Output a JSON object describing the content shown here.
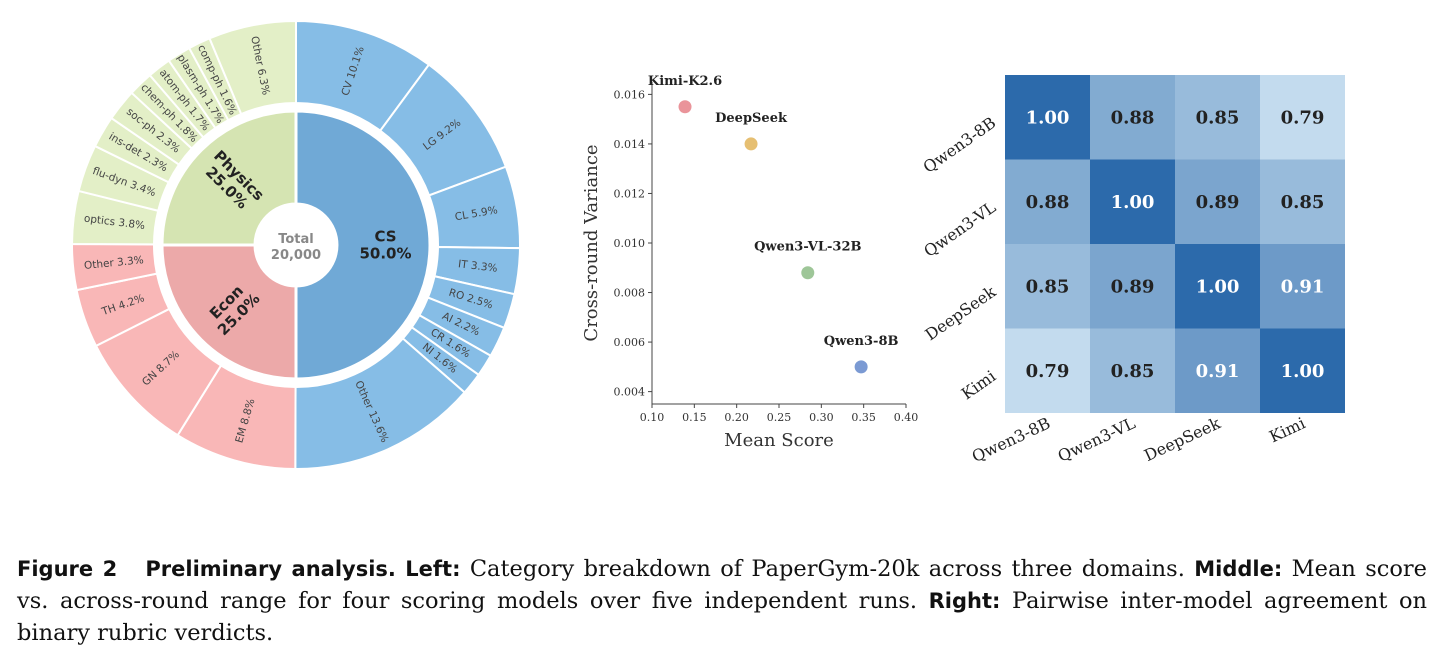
{
  "chart_data": [
    {
      "type": "sunburst",
      "center_label": "Total",
      "center_value": "20,000",
      "inner": [
        {
          "name": "CS",
          "label": "CS",
          "percent_label": "50.0%",
          "value": 50.0,
          "color": "#70a9d6"
        },
        {
          "name": "Econ",
          "label": "Econ",
          "percent_label": "25.0%",
          "value": 25.0,
          "color": "#eca9a9"
        },
        {
          "name": "Physics",
          "label": "Physics",
          "percent_label": "25.0%",
          "value": 25.0,
          "color": "#d5e4b2"
        }
      ],
      "outer": [
        {
          "parent": "CS",
          "label": "CV 10.1%",
          "value": 10.1
        },
        {
          "parent": "CS",
          "label": "LG 9.2%",
          "value": 9.2
        },
        {
          "parent": "CS",
          "label": "CL 5.9%",
          "value": 5.9
        },
        {
          "parent": "CS",
          "label": "IT 3.3%",
          "value": 3.3
        },
        {
          "parent": "CS",
          "label": "RO 2.5%",
          "value": 2.5
        },
        {
          "parent": "CS",
          "label": "AI 2.2%",
          "value": 2.2
        },
        {
          "parent": "CS",
          "label": "CR 1.6%",
          "value": 1.6
        },
        {
          "parent": "CS",
          "label": "NI 1.6%",
          "value": 1.6
        },
        {
          "parent": "CS",
          "label": "Other 13.6%",
          "value": 13.6
        },
        {
          "parent": "Econ",
          "label": "EM 8.8%",
          "value": 8.8
        },
        {
          "parent": "Econ",
          "label": "GN 8.7%",
          "value": 8.7
        },
        {
          "parent": "Econ",
          "label": "TH 4.2%",
          "value": 4.2
        },
        {
          "parent": "Econ",
          "label": "Other 3.3%",
          "value": 3.3
        },
        {
          "parent": "Physics",
          "label": "optics 3.8%",
          "value": 3.8
        },
        {
          "parent": "Physics",
          "label": "flu-dyn 3.4%",
          "value": 3.4
        },
        {
          "parent": "Physics",
          "label": "ins-det 2.3%",
          "value": 2.3
        },
        {
          "parent": "Physics",
          "label": "soc-ph 2.3%",
          "value": 2.3
        },
        {
          "parent": "Physics",
          "label": "chem-ph 1.8%",
          "value": 1.8
        },
        {
          "parent": "Physics",
          "label": "atom-ph 1.7%",
          "value": 1.7
        },
        {
          "parent": "Physics",
          "label": "plasm-ph 1.7%",
          "value": 1.7
        },
        {
          "parent": "Physics",
          "label": "comp-ph 1.6%",
          "value": 1.6
        },
        {
          "parent": "Physics",
          "label": "Other 6.3%",
          "value": 6.3
        }
      ],
      "outer_colors": {
        "CS": "#86bde6",
        "Econ": "#f9b7b7",
        "Physics": "#e3efc7"
      }
    },
    {
      "type": "scatter",
      "xlabel": "Mean Score",
      "ylabel": "Cross-round Variance",
      "xlim": [
        0.1,
        0.4
      ],
      "ylim": [
        0.0035,
        0.0165
      ],
      "xticks": [
        0.1,
        0.15,
        0.2,
        0.25,
        0.3,
        0.35,
        0.4
      ],
      "yticks": [
        0.004,
        0.006,
        0.008,
        0.01,
        0.012,
        0.014,
        0.016
      ],
      "points": [
        {
          "name": "Kimi-K2.6",
          "x": 0.139,
          "y": 0.0155,
          "color": "#e8888f"
        },
        {
          "name": "DeepSeek",
          "x": 0.217,
          "y": 0.014,
          "color": "#e3b863"
        },
        {
          "name": "Qwen3-VL-32B",
          "x": 0.284,
          "y": 0.0088,
          "color": "#93c08d"
        },
        {
          "name": "Qwen3-8B",
          "x": 0.347,
          "y": 0.005,
          "color": "#6d8fce"
        }
      ]
    },
    {
      "type": "heatmap",
      "rows": [
        "Qwen3-8B",
        "Qwen3-VL",
        "DeepSeek",
        "Kimi"
      ],
      "cols": [
        "Qwen3-8B",
        "Qwen3-VL",
        "DeepSeek",
        "Kimi"
      ],
      "values": [
        [
          1.0,
          0.88,
          0.85,
          0.79
        ],
        [
          0.88,
          1.0,
          0.89,
          0.85
        ],
        [
          0.85,
          0.89,
          1.0,
          0.91
        ],
        [
          0.79,
          0.85,
          0.91,
          1.0
        ]
      ],
      "value_labels": [
        [
          "1.00",
          "0.88",
          "0.85",
          "0.79"
        ],
        [
          "0.88",
          "1.00",
          "0.89",
          "0.85"
        ],
        [
          "0.85",
          "0.89",
          "1.00",
          "0.91"
        ],
        [
          "0.79",
          "0.85",
          "0.91",
          "1.00"
        ]
      ],
      "color_low": "#c3dbee",
      "color_high": "#2c6aab",
      "vmin": 0.79,
      "vmax": 1.0
    }
  ],
  "caption": {
    "figure_label": "Figure 2",
    "title": "Preliminary analysis.",
    "left_label": "Left:",
    "left_text": "Category breakdown of PaperGym-20k across three domains.",
    "middle_label": "Middle:",
    "middle_text": "Mean score vs. across-round range for four scoring models over five independent runs.",
    "right_label": "Right:",
    "right_text": "Pairwise inter-model agreement on binary rubric verdicts."
  }
}
